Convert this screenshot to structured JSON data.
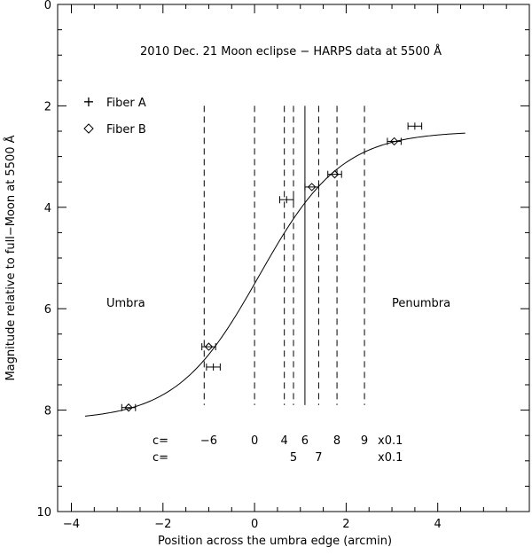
{
  "chart_data": {
    "type": "scatter",
    "title": "2010 Dec. 21 Moon eclipse − HARPS data at 5500 Å",
    "xlabel": "Position across the umbra edge (arcmin)",
    "ylabel": "Magnitude relative to full−Moon at 5500 Å",
    "xlim": [
      -4.3,
      6.0
    ],
    "ylim": [
      10,
      0
    ],
    "y_inverted": true,
    "grid": false,
    "legend_position": "top-left",
    "x_ticks": [
      {
        "value": -4,
        "label": "−4"
      },
      {
        "value": -2,
        "label": "−2"
      },
      {
        "value": 0,
        "label": "0"
      },
      {
        "value": 2,
        "label": "2"
      },
      {
        "value": 4,
        "label": "4"
      }
    ],
    "y_ticks": [
      {
        "value": 0,
        "label": "0"
      },
      {
        "value": 2,
        "label": "2"
      },
      {
        "value": 4,
        "label": "4"
      },
      {
        "value": 6,
        "label": "6"
      },
      {
        "value": 8,
        "label": "8"
      },
      {
        "value": 10,
        "label": "10"
      }
    ],
    "series": [
      {
        "name": "Fiber A",
        "marker": "plus",
        "points": [
          {
            "x": -0.9,
            "y": 7.15,
            "xerr": 0.15
          },
          {
            "x": 0.7,
            "y": 3.85,
            "xerr": 0.15
          },
          {
            "x": 3.5,
            "y": 2.4,
            "xerr": 0.15
          }
        ]
      },
      {
        "name": "Fiber B",
        "marker": "diamond",
        "points": [
          {
            "x": -2.75,
            "y": 7.95,
            "xerr": 0.15
          },
          {
            "x": -1.0,
            "y": 6.75,
            "xerr": 0.15
          },
          {
            "x": 1.25,
            "y": 3.6,
            "xerr": 0.15
          },
          {
            "x": 1.75,
            "y": 3.35,
            "xerr": 0.15
          },
          {
            "x": 3.05,
            "y": 2.7,
            "xerr": 0.15
          }
        ]
      }
    ],
    "model_curve": {
      "formula": "y = 2.5 + 5.7 / (1 + exp((x - 0.1) / 0.9))",
      "x_range": [
        -3.7,
        4.6
      ]
    },
    "vertical_lines": [
      {
        "x": -1.1,
        "style": "dashed"
      },
      {
        "x": 0.0,
        "style": "dashed"
      },
      {
        "x": 0.65,
        "style": "dashed"
      },
      {
        "x": 0.85,
        "style": "dashed"
      },
      {
        "x": 1.1,
        "style": "solid"
      },
      {
        "x": 1.4,
        "style": "dashed"
      },
      {
        "x": 1.8,
        "style": "dashed"
      },
      {
        "x": 2.4,
        "style": "dashed"
      }
    ],
    "annotations": {
      "umbra": "Umbra",
      "penumbra": "Penumbra",
      "c_row1_prefix": "c=",
      "c_row1_values": [
        "−6",
        "0",
        "4",
        "6",
        "8",
        "9"
      ],
      "c_row1_suffix": "x0.1",
      "c_row2_prefix": "c=",
      "c_row2_values": [
        "5",
        "7"
      ],
      "c_row2_suffix": "x0.1"
    }
  }
}
